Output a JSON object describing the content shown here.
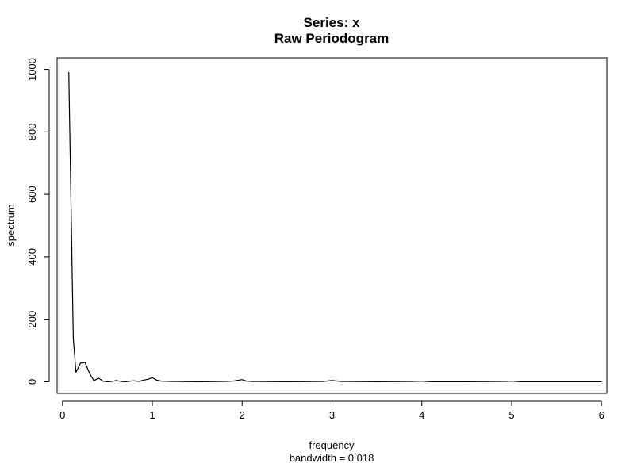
{
  "chart_data": {
    "type": "line",
    "title": "Series: x",
    "subtitle": "Raw Periodogram",
    "xlabel": "frequency",
    "xlabel_note": "bandwidth = 0.018",
    "ylabel": "spectrum",
    "xlim": [
      -0.06,
      6.06
    ],
    "ylim": [
      -37,
      1037
    ],
    "x_ticks": [
      0,
      1,
      2,
      3,
      4,
      5,
      6
    ],
    "x_tick_labels": [
      "0",
      "1",
      "2",
      "3",
      "4",
      "5",
      "6"
    ],
    "y_ticks": [
      0,
      200,
      400,
      600,
      800,
      1000
    ],
    "y_tick_labels": [
      "0",
      "200",
      "400",
      "600",
      "800",
      "1000"
    ],
    "grid": false,
    "legend": "none",
    "series": [
      {
        "x": [
          0.07,
          0.12,
          0.15,
          0.2,
          0.25,
          0.3,
          0.35,
          0.4,
          0.45,
          0.5,
          0.55,
          0.6,
          0.65,
          0.7,
          0.75,
          0.8,
          0.85,
          0.9,
          0.95,
          1.0,
          1.05,
          1.1,
          1.2,
          1.5,
          1.8,
          1.9,
          2.0,
          2.05,
          2.1,
          2.5,
          2.9,
          3.0,
          3.1,
          3.5,
          3.9,
          4.0,
          4.1,
          4.5,
          4.9,
          5.0,
          5.1,
          5.5,
          6.0
        ],
        "y": [
          990,
          140,
          30,
          60,
          62,
          28,
          3,
          12,
          2,
          0,
          1,
          4,
          1,
          0,
          2,
          3,
          1,
          5,
          8,
          13,
          5,
          2,
          1,
          0,
          1,
          2,
          7,
          2,
          1,
          0,
          1,
          4,
          1,
          0,
          1,
          2,
          0,
          0,
          1,
          2,
          0,
          0,
          0
        ],
        "color": "#000000"
      }
    ]
  }
}
